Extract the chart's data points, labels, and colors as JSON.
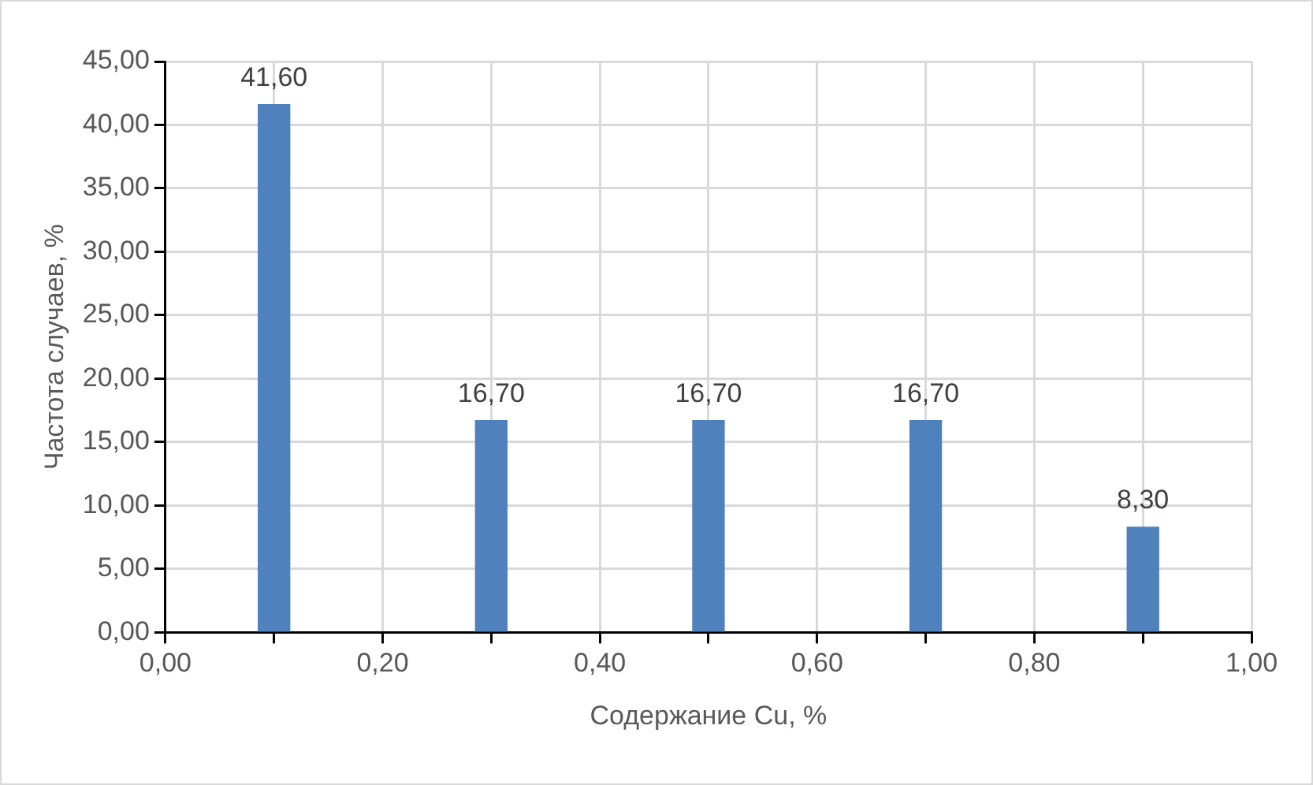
{
  "chart_data": {
    "type": "bar",
    "xlabel": "Содержание Cu, %",
    "ylabel": "Частота случаев, %",
    "x": [
      0.1,
      0.3,
      0.5,
      0.7,
      0.9
    ],
    "series": [
      {
        "color": "#4f81bd",
        "values": [
          41.6,
          16.7,
          16.7,
          16.7,
          8.3
        ],
        "value_labels": [
          "41,60",
          "16,70",
          "16,70",
          "16,70",
          "8,30"
        ]
      }
    ],
    "xlim": [
      0,
      1
    ],
    "xticks": [
      {
        "value": 0,
        "label": "0,00"
      },
      {
        "value": 0.1,
        "label": null
      },
      {
        "value": 0.2,
        "label": "0,20"
      },
      {
        "value": 0.3,
        "label": null
      },
      {
        "value": 0.4,
        "label": "0,40"
      },
      {
        "value": 0.5,
        "label": null
      },
      {
        "value": 0.6,
        "label": "0,60"
      },
      {
        "value": 0.7,
        "label": null
      },
      {
        "value": 0.8,
        "label": "0,80"
      },
      {
        "value": 0.9,
        "label": null
      },
      {
        "value": 1,
        "label": "1,00"
      }
    ],
    "ylim": [
      0,
      45
    ],
    "yticks": [
      {
        "value": 0,
        "label": "0,00"
      },
      {
        "value": 5,
        "label": "5,00"
      },
      {
        "value": 10,
        "label": "10,00"
      },
      {
        "value": 15,
        "label": "15,00"
      },
      {
        "value": 20,
        "label": "20,00"
      },
      {
        "value": 25,
        "label": "25,00"
      },
      {
        "value": 30,
        "label": "30,00"
      },
      {
        "value": 35,
        "label": "35,00"
      },
      {
        "value": 40,
        "label": "40,00"
      },
      {
        "value": 45,
        "label": "45,00"
      }
    ],
    "grid": true
  }
}
